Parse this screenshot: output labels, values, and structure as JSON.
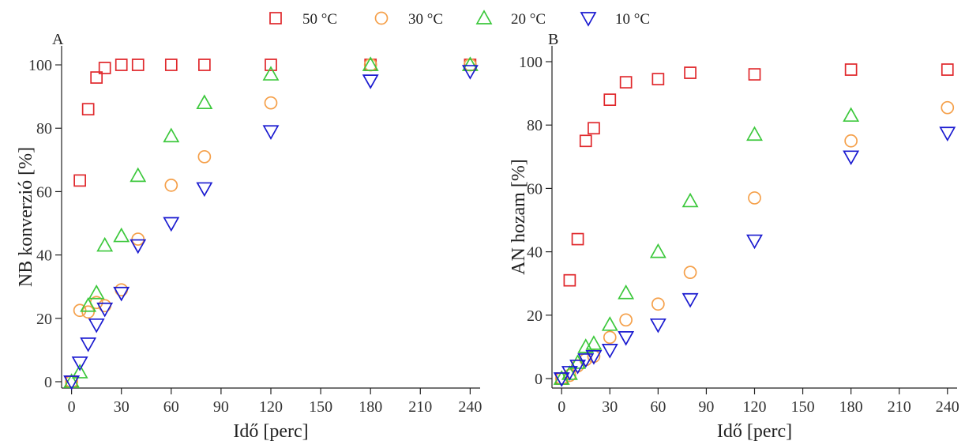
{
  "legend": {
    "entries": [
      {
        "label": "50 °C",
        "marker": "square",
        "color": "#e0282c"
      },
      {
        "label": "30 °C",
        "marker": "circle",
        "color": "#f5a04a"
      },
      {
        "label": "20 °C",
        "marker": "triangle-up",
        "color": "#3cc83c"
      },
      {
        "label": "10 °C",
        "marker": "triangle-down",
        "color": "#1a1ad0"
      }
    ]
  },
  "chart_data": [
    {
      "panel_label": "A",
      "type": "scatter",
      "xlabel": "Idő [perc]",
      "ylabel": "NB konverzió [%]",
      "xlim": [
        -6,
        246
      ],
      "ylim": [
        -2,
        106
      ],
      "xticks": [
        0,
        30,
        60,
        90,
        120,
        150,
        180,
        210,
        240
      ],
      "yticks": [
        0,
        20,
        40,
        60,
        80,
        100
      ],
      "series": [
        {
          "name": "50 °C",
          "x": [
            0,
            5,
            10,
            15,
            20,
            30,
            40,
            60,
            80,
            120,
            180,
            240
          ],
          "y": [
            0,
            63.5,
            86,
            96,
            99,
            100,
            100,
            100,
            100,
            100,
            100,
            100
          ]
        },
        {
          "name": "30 °C",
          "x": [
            0,
            5,
            10,
            15,
            20,
            30,
            40,
            60,
            80,
            120,
            180,
            240
          ],
          "y": [
            0,
            22.5,
            22,
            25,
            24,
            29,
            45,
            62,
            71,
            88,
            100,
            100
          ]
        },
        {
          "name": "20 °C",
          "x": [
            0,
            5,
            10,
            15,
            20,
            30,
            40,
            60,
            80,
            120,
            180,
            240
          ],
          "y": [
            0,
            3,
            24,
            28,
            43,
            46,
            65,
            77.5,
            88,
            97,
            100,
            100
          ]
        },
        {
          "name": "10 °C",
          "x": [
            0,
            5,
            10,
            15,
            20,
            30,
            40,
            60,
            80,
            120,
            180,
            240
          ],
          "y": [
            0,
            6,
            12,
            18,
            23,
            28,
            43,
            50,
            61,
            79,
            95,
            98
          ]
        }
      ]
    },
    {
      "panel_label": "B",
      "type": "scatter",
      "xlabel": "Idő [perc]",
      "ylabel": "AN hozam [%]",
      "xlim": [
        -6,
        246
      ],
      "ylim": [
        -3,
        105
      ],
      "xticks": [
        0,
        30,
        60,
        90,
        120,
        150,
        180,
        210,
        240
      ],
      "yticks": [
        0,
        20,
        40,
        60,
        80,
        100
      ],
      "series": [
        {
          "name": "50 °C",
          "x": [
            0,
            5,
            10,
            15,
            20,
            30,
            40,
            60,
            80,
            120,
            180,
            240
          ],
          "y": [
            0,
            31,
            44,
            75,
            79,
            88,
            93.5,
            94.5,
            96.5,
            96,
            97.5,
            97.5
          ]
        },
        {
          "name": "30 °C",
          "x": [
            0,
            5,
            10,
            15,
            20,
            30,
            40,
            60,
            80,
            120,
            180,
            240
          ],
          "y": [
            0,
            1,
            4,
            6,
            7,
            13,
            18.5,
            23.5,
            33.5,
            57,
            75,
            85.5
          ]
        },
        {
          "name": "20 °C",
          "x": [
            0,
            5,
            10,
            15,
            20,
            30,
            40,
            60,
            80,
            120,
            180,
            240
          ],
          "y": [
            0,
            1.5,
            5,
            10,
            11,
            17,
            27,
            40,
            56,
            77,
            83,
            null
          ]
        },
        {
          "name": "10 °C",
          "x": [
            0,
            5,
            10,
            15,
            20,
            30,
            40,
            60,
            80,
            120,
            180,
            240
          ],
          "y": [
            0,
            2,
            4,
            6,
            7,
            9,
            13,
            17,
            25,
            43.5,
            70,
            77.5
          ]
        }
      ]
    }
  ]
}
